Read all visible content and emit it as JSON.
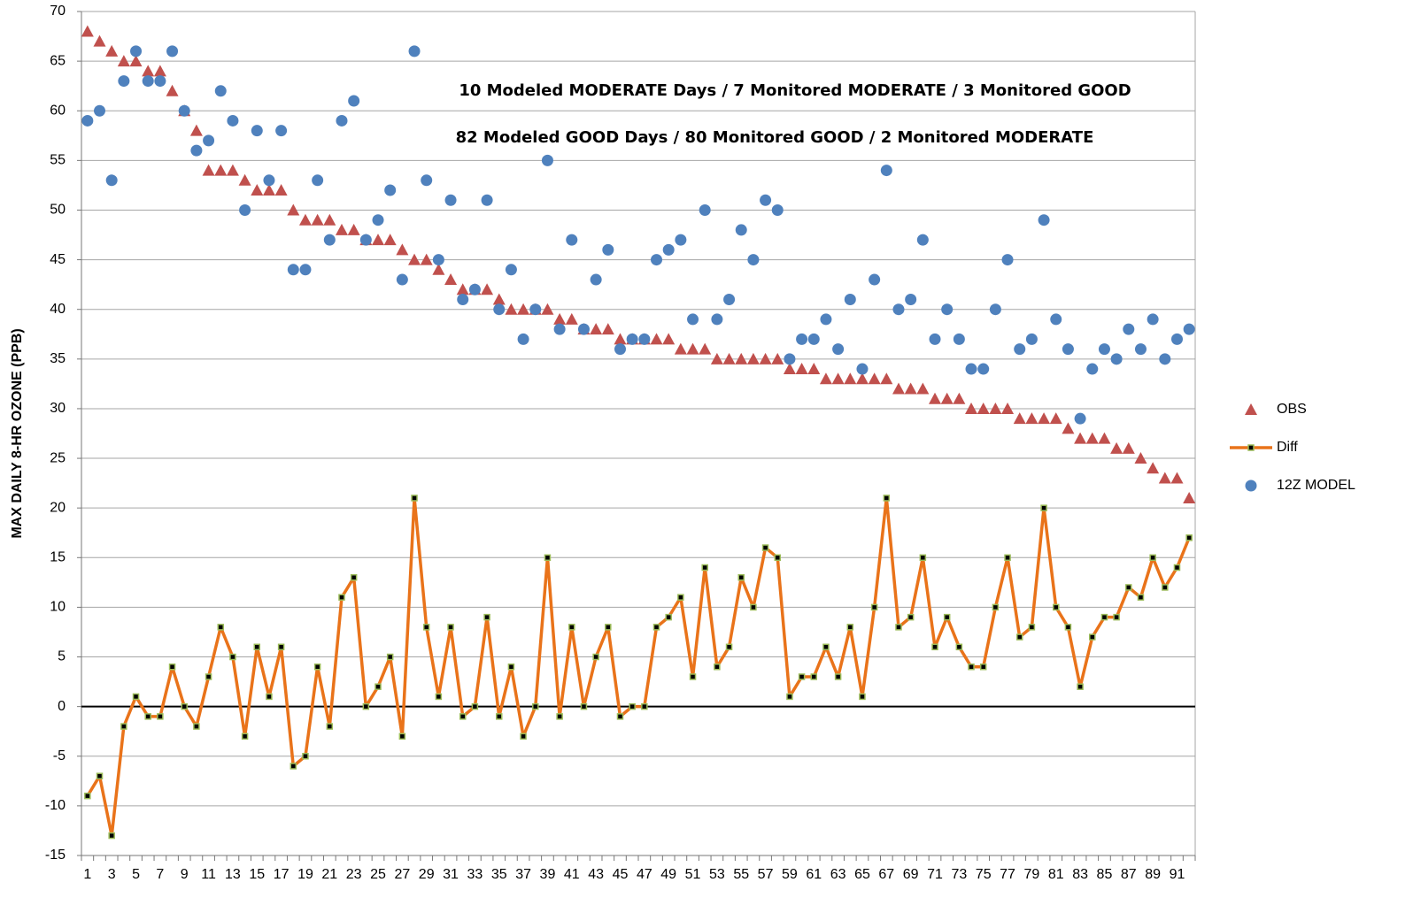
{
  "chart_data": {
    "type": "line",
    "ylabel": "MAX DAILY 8-HR OZONE (PPB)",
    "annotations": [
      "10 Modeled MODERATE Days / 7 Monitored MODERATE / 3 Monitored GOOD",
      "82 Modeled GOOD Days / 80 Monitored GOOD / 2 Monitored MODERATE"
    ],
    "categories": [
      1,
      null,
      3,
      null,
      5,
      null,
      7,
      null,
      9,
      null,
      11,
      null,
      13,
      null,
      15,
      null,
      17,
      null,
      19,
      null,
      21,
      null,
      23,
      null,
      25,
      null,
      27,
      null,
      29,
      null,
      31,
      null,
      33,
      null,
      35,
      null,
      37,
      null,
      39,
      null,
      41,
      null,
      43,
      null,
      45,
      null,
      47,
      null,
      49,
      null,
      51,
      null,
      53,
      null,
      55,
      null,
      57,
      null,
      59,
      null,
      61,
      null,
      63,
      null,
      65,
      null,
      67,
      null,
      69,
      null,
      71,
      null,
      73,
      null,
      75,
      null,
      77,
      null,
      79,
      null,
      81,
      null,
      83,
      null,
      85,
      null,
      87,
      null,
      89,
      null,
      91,
      null
    ],
    "ylim": [
      -15,
      70
    ],
    "yticks": [
      -15,
      -10,
      -5,
      0,
      5,
      10,
      15,
      20,
      25,
      30,
      35,
      40,
      45,
      50,
      55,
      60,
      65,
      70
    ],
    "grid": true,
    "legend": "right",
    "series": [
      {
        "name": "OBS",
        "type": "scatter",
        "marker": "triangle",
        "color": "#c0504d",
        "values": [
          68,
          67,
          66,
          65,
          65,
          64,
          64,
          62,
          60,
          58,
          54,
          54,
          54,
          53,
          52,
          52,
          52,
          50,
          49,
          49,
          49,
          48,
          48,
          47,
          47,
          47,
          46,
          45,
          45,
          44,
          43,
          42,
          42,
          42,
          41,
          40,
          40,
          40,
          40,
          39,
          39,
          38,
          38,
          38,
          37,
          37,
          37,
          37,
          37,
          36,
          36,
          36,
          35,
          35,
          35,
          35,
          35,
          35,
          34,
          34,
          34,
          33,
          33,
          33,
          33,
          33,
          33,
          32,
          32,
          32,
          31,
          31,
          31,
          30,
          30,
          30,
          30,
          29,
          29,
          29,
          29,
          28,
          27,
          27,
          27,
          26,
          26,
          25,
          24,
          23,
          23,
          21
        ]
      },
      {
        "name": "Diff",
        "type": "line",
        "marker": "square",
        "color": "#e9731a",
        "marker_color": "#9bbb59",
        "values": [
          -9,
          -7,
          -13,
          -2,
          1,
          -1,
          -1,
          4,
          0,
          -2,
          3,
          8,
          5,
          -3,
          6,
          1,
          6,
          -6,
          -5,
          4,
          -2,
          11,
          13,
          0,
          2,
          5,
          -3,
          21,
          8,
          1,
          8,
          -1,
          0,
          9,
          -1,
          4,
          -3,
          0,
          15,
          -1,
          8,
          0,
          5,
          8,
          -1,
          0,
          0,
          8,
          9,
          11,
          3,
          14,
          4,
          6,
          13,
          10,
          16,
          15,
          1,
          3,
          3,
          6,
          3,
          8,
          1,
          10,
          21,
          8,
          9,
          15,
          6,
          9,
          6,
          4,
          4,
          10,
          15,
          7,
          8,
          20,
          10,
          8,
          2,
          7,
          9,
          9,
          12,
          11,
          15,
          12,
          14,
          17
        ]
      },
      {
        "name": "12Z MODEL",
        "type": "scatter",
        "marker": "circle",
        "color": "#4f81bd",
        "values": [
          59,
          60,
          53,
          63,
          66,
          63,
          63,
          66,
          60,
          56,
          57,
          62,
          59,
          50,
          58,
          53,
          58,
          44,
          44,
          53,
          47,
          59,
          61,
          47,
          49,
          52,
          43,
          66,
          53,
          45,
          51,
          41,
          42,
          51,
          40,
          44,
          37,
          40,
          55,
          38,
          47,
          38,
          43,
          46,
          36,
          37,
          37,
          45,
          46,
          47,
          39,
          50,
          39,
          41,
          48,
          45,
          51,
          50,
          35,
          37,
          37,
          39,
          36,
          41,
          34,
          43,
          54,
          40,
          41,
          47,
          37,
          40,
          37,
          34,
          34,
          40,
          45,
          36,
          37,
          49,
          39,
          36,
          29,
          34,
          36,
          35,
          38,
          36,
          39,
          35,
          37,
          38
        ]
      }
    ]
  }
}
